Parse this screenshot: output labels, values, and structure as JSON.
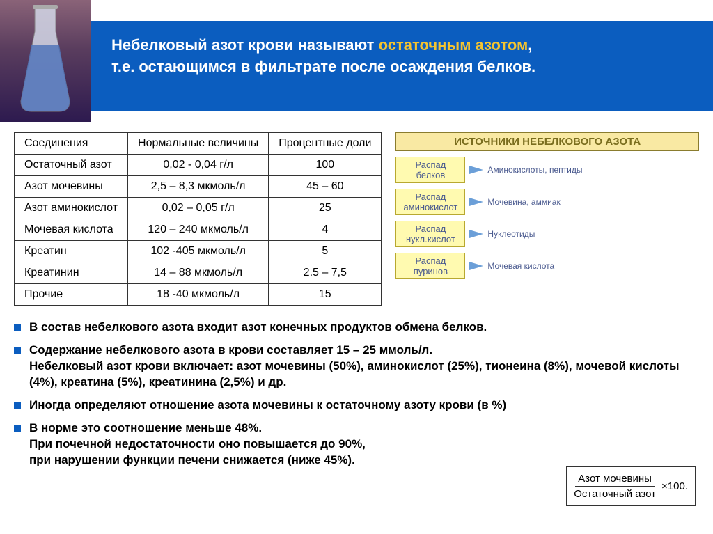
{
  "title": {
    "part1": "Небелковый азот крови называют ",
    "highlight": "остаточным азотом",
    "part2": ",\nт.е. остающимся в фильтрате после осаждения белков."
  },
  "table": {
    "headers": [
      "Соединения",
      "Нормальные величины",
      "Процентные доли"
    ],
    "rows": [
      [
        "Остаточный азот",
        "0,02 - 0,04 г/л",
        "100"
      ],
      [
        "Азот мочевины",
        "2,5 – 8,3 мкмоль/л",
        "45 – 60"
      ],
      [
        "Азот аминокислот",
        "0,02 – 0,05 г/л",
        "25"
      ],
      [
        "Мочевая кислота",
        "120 – 240 мкмоль/л",
        "4"
      ],
      [
        "Креатин",
        "102 -405 мкмоль/л",
        "5"
      ],
      [
        "Креатинин",
        "14 – 88 мкмоль/л",
        "2.5 – 7,5"
      ],
      [
        "Прочие",
        "18 -40 мкмоль/л",
        "15"
      ]
    ]
  },
  "sources": {
    "title": "ИСТОЧНИКИ НЕБЕЛКОВОГО АЗОТА",
    "items": [
      {
        "label": "Распад белков",
        "target": "Аминокислоты, пептиды"
      },
      {
        "label": "Распад аминокислот",
        "target": "Мочевина, аммиак"
      },
      {
        "label": "Распад нукл.кислот",
        "target": "Нуклеотиды"
      },
      {
        "label": "Распад пуринов",
        "target": "Мочевая кислота"
      }
    ]
  },
  "bullets": [
    {
      "text": "В состав небелкового азота входит  азот конечных продуктов обмена  белков.",
      "bold": true
    },
    {
      "text": "Содержание небелкового азота в  крови  составляет  15 – 25 ммоль/л.\nНебелковый азот крови включает:  азот мочевины (50%), аминокислот (25%), тионеина (8%), мочевой кислоты (4%), креатина (5%),  креатинина (2,5%)   и др.",
      "bold": true
    },
    {
      "text": "Иногда определяют отношение азота мочевины  к остаточному  азоту крови (в %)",
      "bold": true
    },
    {
      "text": "В норме это соотношение меньше 48%.\nПри почечной недостаточности оно повышается до 90%,\nпри нарушении  функции печени снижается   (ниже 45%).",
      "bold": true
    }
  ],
  "formula": {
    "numerator": "Азот мочевины",
    "denominator": "Остаточный азот",
    "suffix": "×100."
  },
  "colors": {
    "title_bg": "#0b5dbf",
    "highlight": "#f4c430",
    "source_box_bg": "#f9e9a3",
    "source_label_bg": "#fffab0"
  }
}
